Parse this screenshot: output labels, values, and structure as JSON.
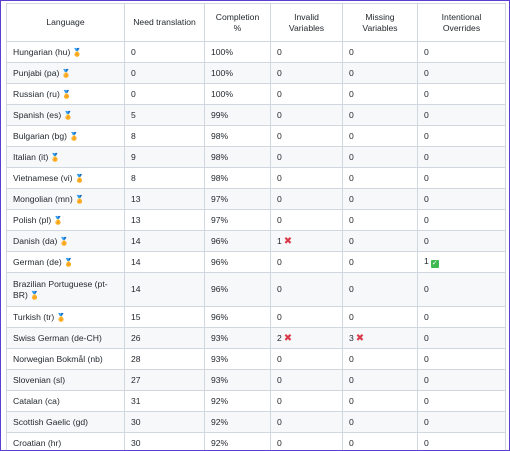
{
  "headers": {
    "language": "Language",
    "need_translation": "Need translation",
    "completion": "Completion %",
    "invalid_variables": "Invalid Variables",
    "missing_variables": "Missing Variables",
    "intentional_overrides": "Intentional Overrides"
  },
  "rows": [
    {
      "language": "Hungarian (hu)",
      "medal": "gold",
      "need": "0",
      "completion": "100%",
      "invalid": "0",
      "invalid_mark": "",
      "missing": "0",
      "missing_mark": "",
      "overrides": "0",
      "overrides_mark": ""
    },
    {
      "language": "Punjabi (pa)",
      "medal": "bronze",
      "need": "0",
      "completion": "100%",
      "invalid": "0",
      "invalid_mark": "",
      "missing": "0",
      "missing_mark": "",
      "overrides": "0",
      "overrides_mark": ""
    },
    {
      "language": "Russian (ru)",
      "medal": "silver",
      "need": "0",
      "completion": "100%",
      "invalid": "0",
      "invalid_mark": "",
      "missing": "0",
      "missing_mark": "",
      "overrides": "0",
      "overrides_mark": ""
    },
    {
      "language": "Spanish (es)",
      "medal": "silver",
      "need": "5",
      "completion": "99%",
      "invalid": "0",
      "invalid_mark": "",
      "missing": "0",
      "missing_mark": "",
      "overrides": "0",
      "overrides_mark": ""
    },
    {
      "language": "Bulgarian (bg)",
      "medal": "silver",
      "need": "8",
      "completion": "98%",
      "invalid": "0",
      "invalid_mark": "",
      "missing": "0",
      "missing_mark": "",
      "overrides": "0",
      "overrides_mark": ""
    },
    {
      "language": "Italian (it)",
      "medal": "silver",
      "need": "9",
      "completion": "98%",
      "invalid": "0",
      "invalid_mark": "",
      "missing": "0",
      "missing_mark": "",
      "overrides": "0",
      "overrides_mark": ""
    },
    {
      "language": "Vietnamese (vi)",
      "medal": "silver",
      "need": "8",
      "completion": "98%",
      "invalid": "0",
      "invalid_mark": "",
      "missing": "0",
      "missing_mark": "",
      "overrides": "0",
      "overrides_mark": ""
    },
    {
      "language": "Mongolian (mn)",
      "medal": "bronze",
      "need": "13",
      "completion": "97%",
      "invalid": "0",
      "invalid_mark": "",
      "missing": "0",
      "missing_mark": "",
      "overrides": "0",
      "overrides_mark": ""
    },
    {
      "language": "Polish (pl)",
      "medal": "bronze",
      "need": "13",
      "completion": "97%",
      "invalid": "0",
      "invalid_mark": "",
      "missing": "0",
      "missing_mark": "",
      "overrides": "0",
      "overrides_mark": ""
    },
    {
      "language": "Danish (da)",
      "medal": "bronze",
      "need": "14",
      "completion": "96%",
      "invalid": "1",
      "invalid_mark": "cross",
      "missing": "0",
      "missing_mark": "",
      "overrides": "0",
      "overrides_mark": ""
    },
    {
      "language": "German (de)",
      "medal": "silver",
      "need": "14",
      "completion": "96%",
      "invalid": "0",
      "invalid_mark": "",
      "missing": "0",
      "missing_mark": "",
      "overrides": "1",
      "overrides_mark": "check"
    },
    {
      "language": "Brazilian Portuguese (pt-BR)",
      "medal": "bronze",
      "need": "14",
      "completion": "96%",
      "invalid": "0",
      "invalid_mark": "",
      "missing": "0",
      "missing_mark": "",
      "overrides": "0",
      "overrides_mark": "",
      "tall": true
    },
    {
      "language": "Turkish (tr)",
      "medal": "silver",
      "need": "15",
      "completion": "96%",
      "invalid": "0",
      "invalid_mark": "",
      "missing": "0",
      "missing_mark": "",
      "overrides": "0",
      "overrides_mark": ""
    },
    {
      "language": "Swiss German (de-CH)",
      "medal": "",
      "need": "26",
      "completion": "93%",
      "invalid": "2",
      "invalid_mark": "cross",
      "missing": "3",
      "missing_mark": "cross",
      "overrides": "0",
      "overrides_mark": ""
    },
    {
      "language": "Norwegian Bokmål (nb)",
      "medal": "",
      "need": "28",
      "completion": "93%",
      "invalid": "0",
      "invalid_mark": "",
      "missing": "0",
      "missing_mark": "",
      "overrides": "0",
      "overrides_mark": ""
    },
    {
      "language": "Slovenian (sl)",
      "medal": "",
      "need": "27",
      "completion": "93%",
      "invalid": "0",
      "invalid_mark": "",
      "missing": "0",
      "missing_mark": "",
      "overrides": "0",
      "overrides_mark": ""
    },
    {
      "language": "Catalan (ca)",
      "medal": "",
      "need": "31",
      "completion": "92%",
      "invalid": "0",
      "invalid_mark": "",
      "missing": "0",
      "missing_mark": "",
      "overrides": "0",
      "overrides_mark": ""
    },
    {
      "language": "Scottish Gaelic (gd)",
      "medal": "",
      "need": "30",
      "completion": "92%",
      "invalid": "0",
      "invalid_mark": "",
      "missing": "0",
      "missing_mark": "",
      "overrides": "0",
      "overrides_mark": ""
    },
    {
      "language": "Croatian (hr)",
      "medal": "",
      "need": "30",
      "completion": "92%",
      "invalid": "0",
      "invalid_mark": "",
      "missing": "0",
      "missing_mark": "",
      "overrides": "0",
      "overrides_mark": ""
    }
  ],
  "icons": {
    "medal": "medal-icon",
    "cross": "cross-mark-icon",
    "check": "check-mark-icon"
  },
  "colors": {
    "frame_border": "#5a3fd0",
    "cross": "#d83b4a",
    "check": "#3fb950",
    "medal_gold": "#d4a017",
    "medal_silver": "#8a9bb5",
    "medal_bronze": "#b8733a"
  }
}
